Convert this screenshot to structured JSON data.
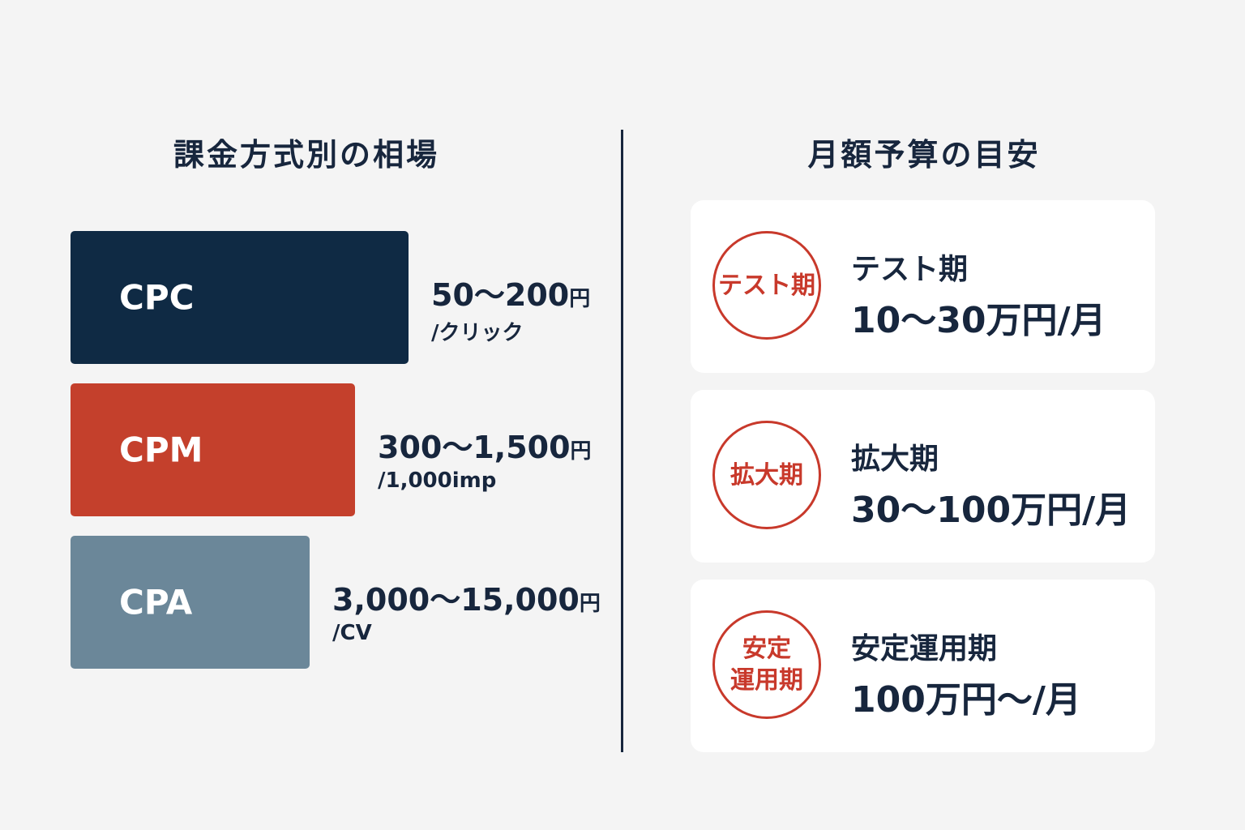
{
  "left": {
    "title": "課金方式別の相場",
    "items": [
      {
        "label": "CPC",
        "price": "50～200",
        "unit": "円",
        "per": "/クリック"
      },
      {
        "label": "CPM",
        "price": "300～1,500",
        "unit": "円",
        "per": "/1,000imp"
      },
      {
        "label": "CPA",
        "price": "3,000～15,000",
        "unit": "円",
        "per": "/CV"
      }
    ]
  },
  "right": {
    "title": "月額予算の目安",
    "cards": [
      {
        "badge": [
          "テスト期"
        ],
        "title": "テスト期",
        "value": "10～30万円/月"
      },
      {
        "badge": [
          "拡大期"
        ],
        "title": "拡大期",
        "value": "30～100万円/月"
      },
      {
        "badge": [
          "安定",
          "運用期"
        ],
        "title": "安定運用期",
        "value": "100万円～/月"
      }
    ]
  }
}
